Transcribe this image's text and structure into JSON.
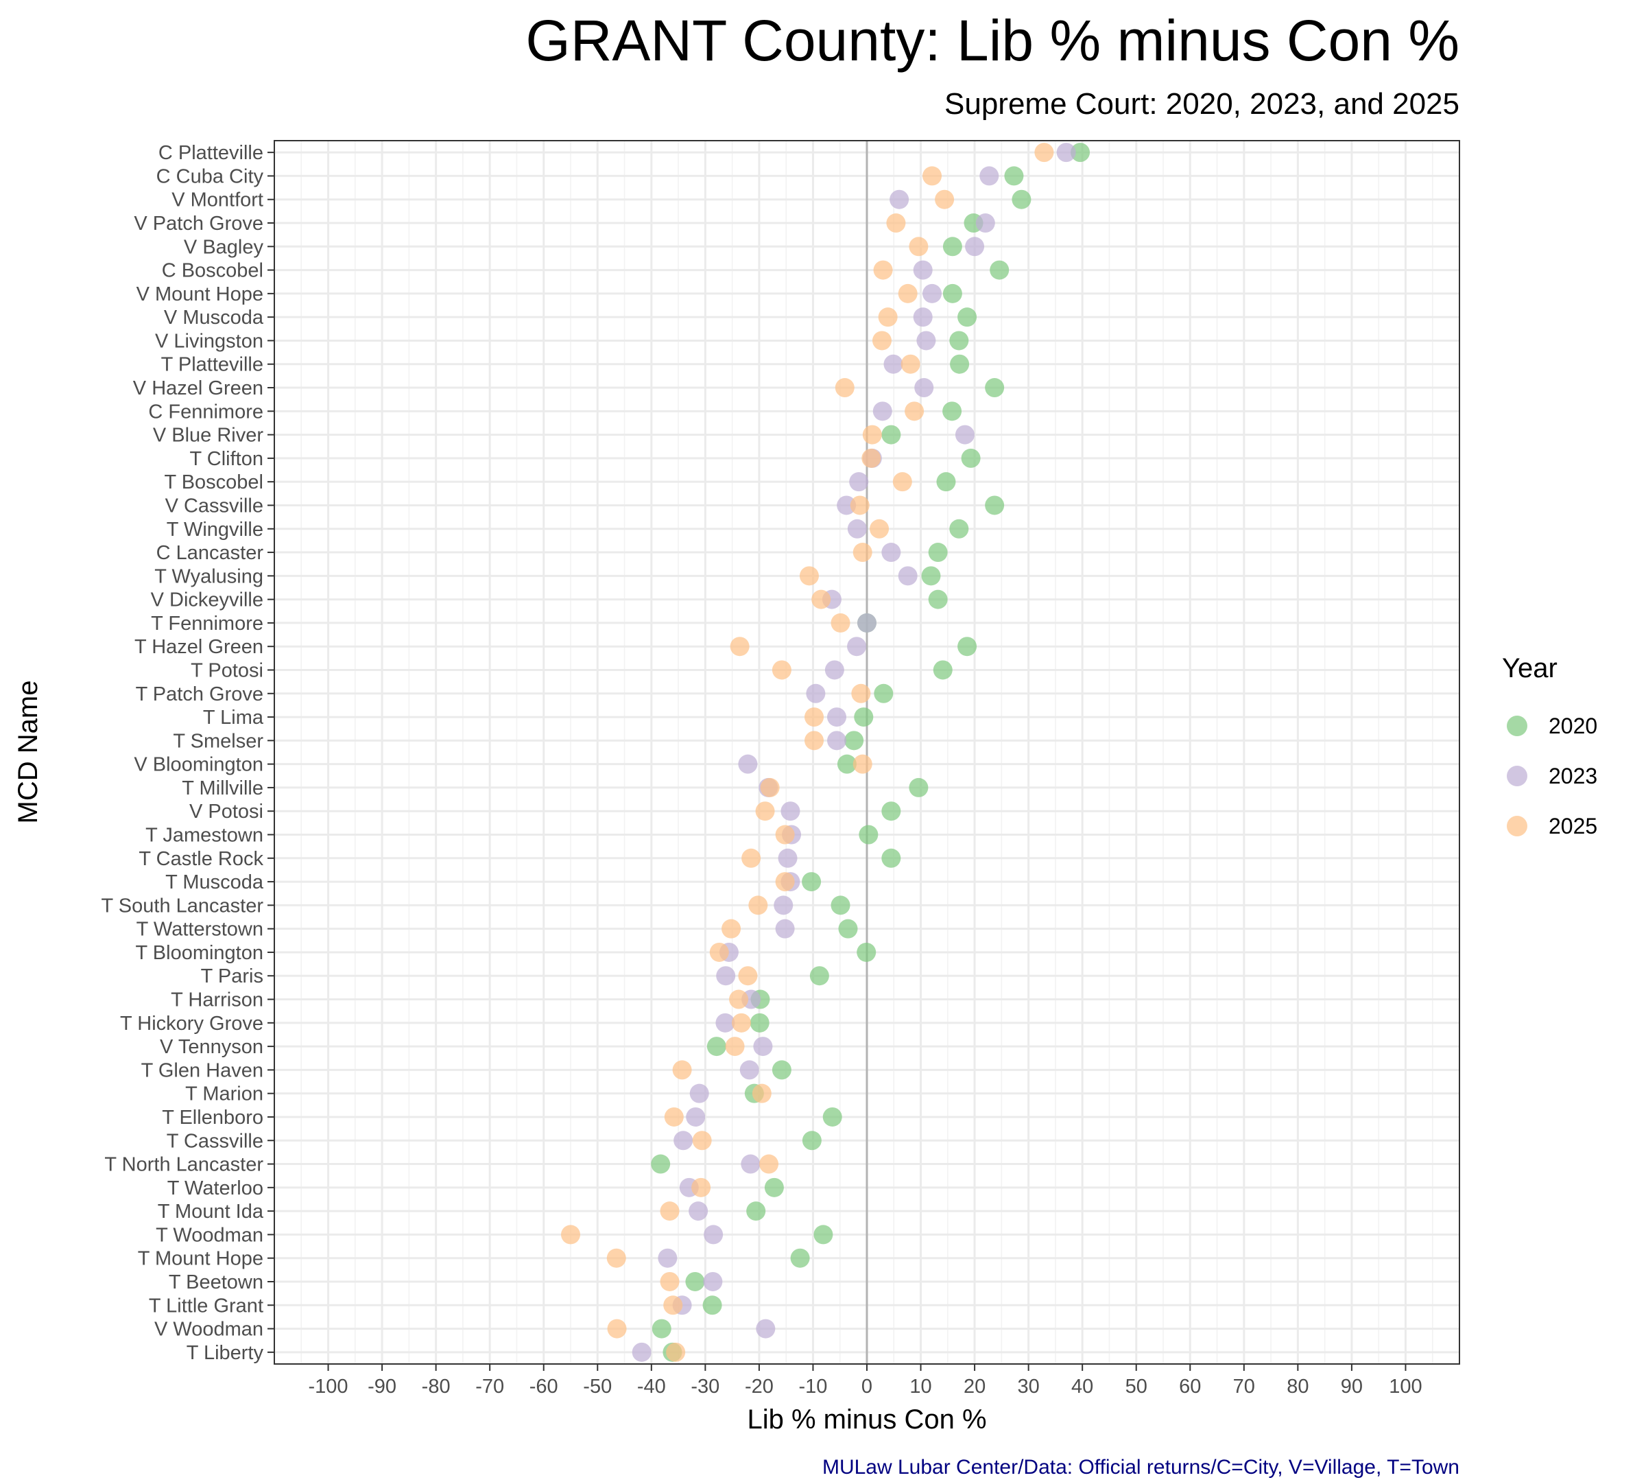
{
  "chart_data": {
    "type": "scatter",
    "title": "GRANT County: Lib % minus Con %",
    "subtitle": "Supreme Court: 2020, 2023, and 2025",
    "xlabel": "Lib % minus Con %",
    "ylabel": "MCD Name",
    "caption": "MULaw Lubar Center/Data: Official returns/C=City, V=Village, T=Town",
    "xlim": [
      -110,
      110
    ],
    "xticks": [
      -100,
      -90,
      -80,
      -70,
      -60,
      -50,
      -40,
      -30,
      -20,
      -10,
      0,
      10,
      20,
      30,
      40,
      50,
      60,
      70,
      80,
      90,
      100
    ],
    "grid": true,
    "legend": {
      "title": "Year",
      "position": "right"
    },
    "categories": [
      "C Platteville",
      "C Cuba City",
      "V Montfort",
      "V Patch Grove",
      "V Bagley",
      "C Boscobel",
      "V Mount Hope",
      "V Muscoda",
      "V Livingston",
      "T Platteville",
      "V Hazel Green",
      "C Fennimore",
      "V Blue River",
      "T Clifton",
      "T Boscobel",
      "V Cassville",
      "T Wingville",
      "C Lancaster",
      "T Wyalusing",
      "V Dickeyville",
      "T Fennimore",
      "T Hazel Green",
      "T Potosi",
      "T Patch Grove",
      "T Lima",
      "T Smelser",
      "V Bloomington",
      "T Millville",
      "V Potosi",
      "T Jamestown",
      "T Castle Rock",
      "T Muscoda",
      "T South Lancaster",
      "T Watterstown",
      "T Bloomington",
      "T Paris",
      "T Harrison",
      "T Hickory Grove",
      "V Tennyson",
      "T Glen Haven",
      "T Marion",
      "T Ellenboro",
      "T Cassville",
      "T North Lancaster",
      "T Waterloo",
      "T Mount Ida",
      "T Woodman",
      "T Mount Hope",
      "T Beetown",
      "T Little Grant",
      "V Woodman",
      "T Liberty"
    ],
    "series": [
      {
        "name": "2020",
        "color": "#7fc97f",
        "values": [
          39.6,
          27.3,
          28.7,
          19.8,
          15.9,
          24.6,
          15.9,
          18.6,
          17.1,
          17.2,
          23.7,
          15.8,
          4.5,
          19.3,
          14.7,
          23.7,
          17.1,
          13.2,
          11.9,
          13.2,
          0,
          18.6,
          14.1,
          3.1,
          -0.6,
          -2.4,
          -3.7,
          9.6,
          4.5,
          0.3,
          4.5,
          -10.3,
          -4.9,
          -3.5,
          -0.1,
          -8.8,
          -19.8,
          -19.9,
          -27.9,
          -15.8,
          -20.9,
          -6.4,
          -10.2,
          -38.3,
          -17.2,
          -20.6,
          -8.1,
          -12.4,
          -31.9,
          -28.7,
          -38.1,
          -36.1
        ]
      },
      {
        "name": "2023",
        "color": "#beaed4",
        "values": [
          37.0,
          22.7,
          6.0,
          22.0,
          20.0,
          10.4,
          12.1,
          10.4,
          11.0,
          4.9,
          10.6,
          2.9,
          18.2,
          1.0,
          -1.5,
          -3.8,
          -1.8,
          4.5,
          7.6,
          -6.5,
          0,
          -1.9,
          -6.0,
          -9.5,
          -5.6,
          -5.6,
          -22.1,
          -18.3,
          -14.2,
          -14.0,
          -14.7,
          -14.2,
          -15.5,
          -15.2,
          -25.6,
          -26.2,
          -21.5,
          -26.3,
          -19.3,
          -21.8,
          -31.1,
          -31.8,
          -34.1,
          -21.6,
          -33.0,
          -31.3,
          -28.5,
          -37.0,
          -28.6,
          -34.3,
          -18.8,
          -41.8
        ]
      },
      {
        "name": "2025",
        "color": "#fdc086",
        "values": [
          32.9,
          12.1,
          14.4,
          5.4,
          9.6,
          3.0,
          7.6,
          3.9,
          2.8,
          8.1,
          -4.1,
          8.8,
          1.0,
          0.8,
          6.6,
          -1.3,
          2.3,
          -0.8,
          -10.7,
          -8.5,
          -4.9,
          -23.6,
          -15.8,
          -1.1,
          -9.8,
          -9.8,
          -0.8,
          -18.0,
          -18.9,
          -15.2,
          -21.5,
          -15.2,
          -20.2,
          -25.2,
          -27.4,
          -22.1,
          -23.8,
          -23.3,
          -24.5,
          -34.3,
          -19.5,
          -35.8,
          -30.6,
          -18.2,
          -30.8,
          -36.6,
          -55.0,
          -46.5,
          -36.6,
          -36.0,
          -46.4,
          -35.5
        ]
      }
    ]
  }
}
